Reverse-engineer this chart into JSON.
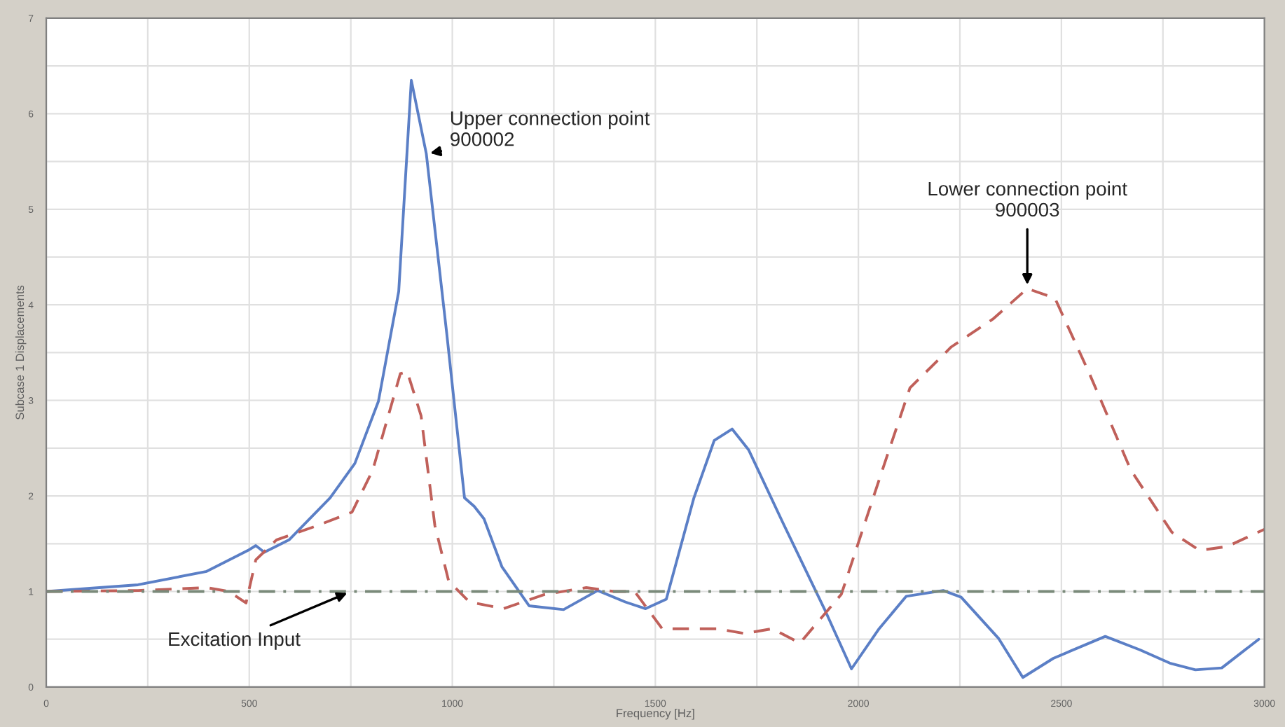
{
  "chart_data": {
    "type": "line",
    "xlabel": "Frequency [Hz]",
    "ylabel": "Subcase 1 Displacements",
    "xlim": [
      0,
      3000
    ],
    "ylim": [
      0,
      7
    ],
    "xticks": [
      0,
      500,
      1000,
      1500,
      2000,
      2500,
      3000
    ],
    "yticks": [
      0,
      1,
      2,
      3,
      4,
      5,
      6,
      7
    ],
    "grid": true,
    "legend": false,
    "series": [
      {
        "color": "#5b7fc6",
        "line_style": "solid",
        "x": [
          0,
          226,
          395,
          497,
          516,
          537,
          598,
          699,
          760,
          818,
          868,
          899,
          936,
          986,
          1030,
          1054,
          1078,
          1122,
          1189,
          1274,
          1358,
          1426,
          1476,
          1527,
          1595,
          1645,
          1689,
          1730,
          1814,
          1916,
          1983,
          2051,
          2118,
          2209,
          2253,
          2345,
          2405,
          2480,
          2608,
          2693,
          2767,
          2830,
          2895,
          2986
        ],
        "values": [
          1.0,
          1.07,
          1.21,
          1.43,
          1.48,
          1.41,
          1.54,
          1.98,
          2.34,
          2.99,
          4.14,
          6.35,
          5.58,
          3.71,
          1.98,
          1.89,
          1.76,
          1.26,
          0.85,
          0.81,
          1.01,
          0.89,
          0.82,
          0.92,
          1.98,
          2.58,
          2.7,
          2.48,
          1.72,
          0.82,
          0.19,
          0.61,
          0.95,
          1.01,
          0.94,
          0.51,
          0.1,
          0.3,
          0.53,
          0.39,
          0.25,
          0.18,
          0.2,
          0.5
        ]
      },
      {
        "color": "#c0605a",
        "line_style": "dashed",
        "x": [
          0,
          226,
          395,
          450,
          492,
          516,
          567,
          668,
          753,
          804,
          872,
          889,
          923,
          957,
          991,
          1042,
          1126,
          1228,
          1330,
          1398,
          1449,
          1517,
          1653,
          1720,
          1788,
          1856,
          1958,
          2059,
          2127,
          2229,
          2331,
          2416,
          2484,
          2569,
          2671,
          2772,
          2840,
          2908,
          3000
        ],
        "values": [
          1.0,
          1.01,
          1.04,
          1.0,
          0.88,
          1.33,
          1.54,
          1.69,
          1.83,
          2.27,
          3.28,
          3.3,
          2.84,
          1.69,
          1.11,
          0.89,
          0.82,
          0.97,
          1.04,
          1.0,
          1.0,
          0.61,
          0.61,
          0.56,
          0.61,
          0.46,
          0.97,
          2.27,
          3.13,
          3.56,
          3.85,
          4.17,
          4.07,
          3.28,
          2.27,
          1.62,
          1.43,
          1.47,
          1.65
        ]
      },
      {
        "color": "#7a8a7a",
        "line_style": "dotted",
        "x": [
          0,
          3000
        ],
        "values": [
          1.0,
          1.0
        ]
      }
    ],
    "annotations": [
      {
        "text": "Upper connection point\n900002",
        "x": 936,
        "y": 5.58
      },
      {
        "text": "Lower connection point\n900003",
        "x": 2416,
        "y": 4.17
      },
      {
        "text": "Excitation Input",
        "x": 750,
        "y": 1.0
      }
    ]
  }
}
